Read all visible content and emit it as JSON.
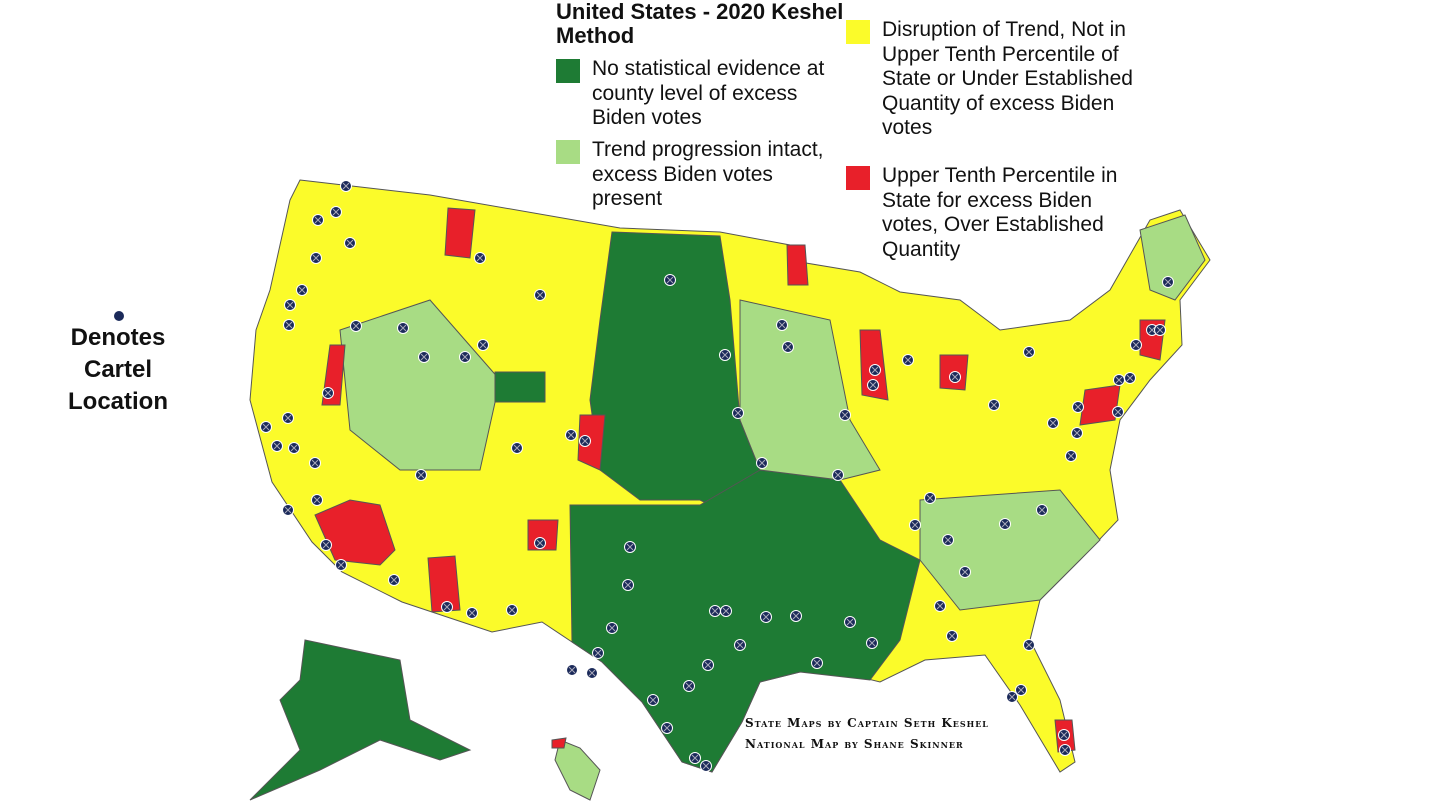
{
  "title": "United States - 2020 Keshel Method",
  "legend": [
    {
      "label": "No statistical evidence at county level of excess Biden votes",
      "color": "#1e7b34"
    },
    {
      "label": "Trend progression intact, excess Biden votes present",
      "color": "#a8dc84"
    },
    {
      "label": "Disruption of Trend, Not in Upper Tenth Percentile of State or Under Established Quantity of excess Biden votes",
      "color": "#fbfb2a"
    },
    {
      "label": "Upper Tenth Percentile in State for excess Biden votes, Over Established Quantity",
      "color": "#e8202a"
    }
  ],
  "marker_note": "Denotes Cartel Location",
  "credits": [
    "State Maps by Captain Seth Keshel",
    "National Map by Shane Skinner"
  ]
}
